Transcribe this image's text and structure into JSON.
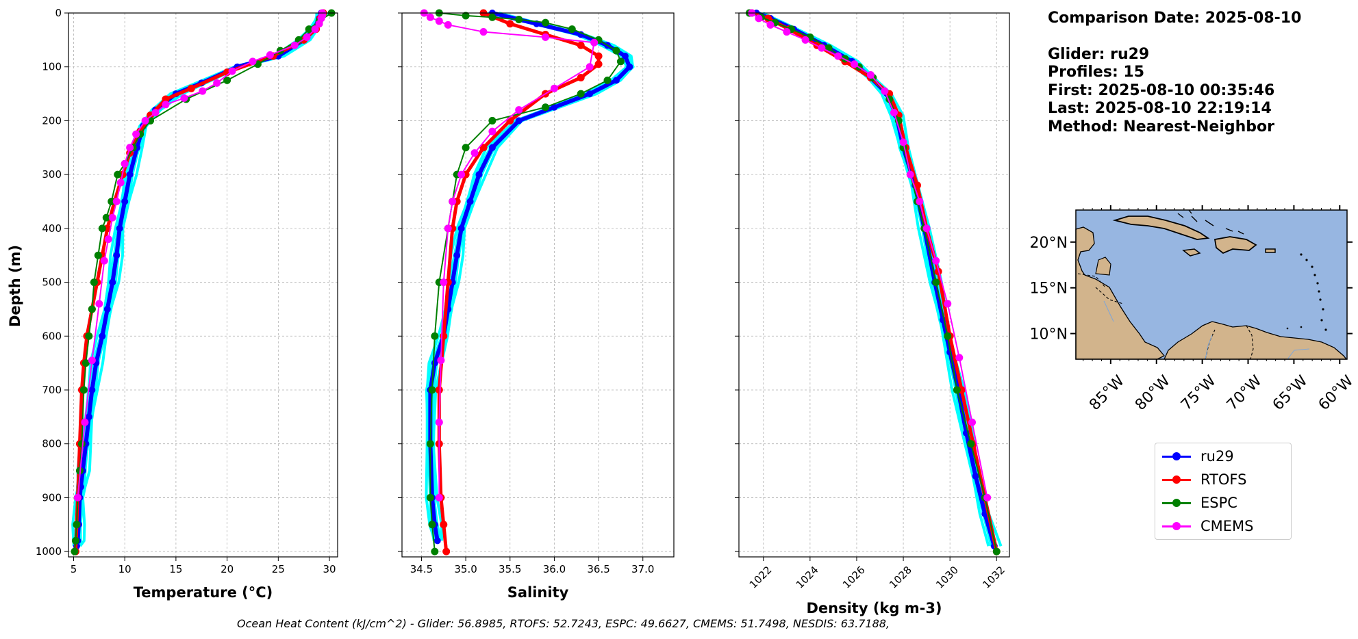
{
  "info": {
    "comparison_date": "Comparison Date: 2025-08-10",
    "glider": "Glider: ru29",
    "profiles": "Profiles: 15",
    "first": "First: 2025-08-10 00:35:46",
    "last": "Last: 2025-08-10 22:19:14",
    "method": "Method: Nearest-Neighbor"
  },
  "footer": "Ocean Heat Content (kJ/cm^2) - Glider: 56.8985,  RTOFS: 52.7243,  ESPC: 49.6627,  CMEMS: 51.7498,  NESDIS: 63.7188,",
  "legend": [
    {
      "name": "ru29",
      "color": "#0000ff"
    },
    {
      "name": "RTOFS",
      "color": "#ff0000"
    },
    {
      "name": "ESPC",
      "color": "#008000"
    },
    {
      "name": "CMEMS",
      "color": "#ff00ff"
    }
  ],
  "colors": {
    "glider_profiles": "#00ffff",
    "ocean": "#97b6e1",
    "land": "#d2b48c"
  },
  "chart_data": [
    {
      "type": "line",
      "xlabel": "Temperature (°C)",
      "ylabel": "Depth (m)",
      "xlim": [
        4.5,
        30.8
      ],
      "ylim": [
        1010,
        0
      ],
      "xticks": [
        5,
        10,
        15,
        20,
        25,
        30
      ],
      "yticks": [
        0,
        100,
        200,
        300,
        400,
        500,
        600,
        700,
        800,
        900,
        1000
      ],
      "grid": true,
      "series": [
        {
          "name": "ru29",
          "color": "#0000ff",
          "x": [
            29.2,
            29.0,
            28.5,
            27.5,
            25.0,
            21.0,
            17.5,
            15.0,
            13.0,
            11.8,
            11.2,
            10.5,
            10.0,
            9.5,
            9.2,
            8.8,
            8.3,
            7.8,
            7.2,
            6.8,
            6.5,
            6.2,
            5.9,
            5.7,
            5.6,
            5.5,
            5.4,
            5.3
          ],
          "y": [
            0,
            10,
            30,
            50,
            80,
            100,
            130,
            150,
            180,
            210,
            250,
            300,
            350,
            400,
            450,
            500,
            550,
            600,
            650,
            700,
            750,
            800,
            850,
            880,
            900,
            950,
            980,
            990
          ]
        },
        {
          "name": "RTOFS",
          "color": "#ff0000",
          "x": [
            29.4,
            29.1,
            28.7,
            27.5,
            24.5,
            20.0,
            16.5,
            14.0,
            12.5,
            11.5,
            10.5,
            9.8,
            9.0,
            8.3,
            7.8,
            7.3,
            6.8,
            6.3,
            6.0,
            5.8,
            5.6,
            5.4,
            5.3,
            5.2
          ],
          "y": [
            0,
            10,
            30,
            50,
            80,
            110,
            140,
            160,
            190,
            220,
            260,
            300,
            350,
            400,
            450,
            500,
            550,
            600,
            650,
            700,
            800,
            900,
            950,
            1000
          ]
        },
        {
          "name": "ESPC",
          "color": "#008000",
          "x": [
            30.2,
            29.0,
            28.0,
            27.0,
            25.2,
            23.0,
            20.0,
            16.0,
            12.5,
            11.5,
            10.8,
            10.0,
            9.3,
            8.7,
            8.2,
            7.8,
            7.4,
            7.0,
            6.8,
            6.5,
            6.2,
            6.0,
            5.8,
            5.6,
            5.4,
            5.3,
            5.2,
            5.1
          ],
          "y": [
            0,
            15,
            30,
            50,
            70,
            95,
            125,
            160,
            200,
            225,
            250,
            280,
            300,
            350,
            380,
            400,
            450,
            500,
            550,
            600,
            650,
            700,
            800,
            850,
            900,
            950,
            980,
            1000
          ]
        },
        {
          "name": "CMEMS",
          "color": "#ff00ff",
          "x": [
            29.3,
            29.3,
            29.2,
            29.0,
            28.6,
            27.8,
            26.6,
            24.2,
            22.5,
            20.5,
            19.0,
            17.6,
            15.8,
            14.0,
            13.0,
            12.0,
            11.1,
            10.5,
            10.0,
            9.6,
            9.2,
            8.8,
            8.4,
            8.0,
            7.5,
            6.8,
            6.1,
            5.4
          ],
          "y": [
            0,
            5,
            10,
            20,
            30,
            45,
            60,
            78,
            90,
            108,
            130,
            145,
            158,
            170,
            185,
            200,
            225,
            250,
            280,
            315,
            350,
            380,
            420,
            460,
            540,
            645,
            760,
            900
          ]
        }
      ]
    },
    {
      "type": "line",
      "xlabel": "Salinity",
      "xlim": [
        34.28,
        37.35
      ],
      "ylim": [
        1010,
        0
      ],
      "xticks": [
        34.5,
        35.0,
        35.5,
        36.0,
        36.5,
        37.0
      ],
      "yticks": [
        0,
        100,
        200,
        300,
        400,
        500,
        600,
        700,
        800,
        900,
        1000
      ],
      "grid": true,
      "series": [
        {
          "name": "ru29",
          "color": "#0000ff",
          "x": [
            35.3,
            35.8,
            36.3,
            36.6,
            36.8,
            36.85,
            36.7,
            36.4,
            36.0,
            35.6,
            35.3,
            35.15,
            35.05,
            34.95,
            34.9,
            34.85,
            34.8,
            34.75,
            34.65,
            34.6,
            34.6,
            34.62,
            34.65,
            34.68
          ],
          "y": [
            0,
            20,
            40,
            60,
            80,
            100,
            125,
            150,
            175,
            200,
            250,
            300,
            350,
            400,
            450,
            500,
            550,
            600,
            650,
            700,
            800,
            900,
            950,
            980
          ]
        },
        {
          "name": "RTOFS",
          "color": "#ff0000",
          "x": [
            35.2,
            35.5,
            35.9,
            36.3,
            36.5,
            36.5,
            36.3,
            35.9,
            35.5,
            35.2,
            35.0,
            34.9,
            34.85,
            34.8,
            34.75,
            34.7,
            34.7,
            34.72,
            34.75,
            34.78
          ],
          "y": [
            0,
            20,
            40,
            60,
            80,
            95,
            120,
            150,
            200,
            250,
            300,
            350,
            400,
            500,
            600,
            700,
            800,
            900,
            950,
            1000
          ]
        },
        {
          "name": "ESPC",
          "color": "#008000",
          "x": [
            34.7,
            35.0,
            35.3,
            35.6,
            35.9,
            36.2,
            36.5,
            36.7,
            36.75,
            36.6,
            36.3,
            35.9,
            35.3,
            35.0,
            34.9,
            34.85,
            34.8,
            34.7,
            34.65,
            34.62,
            34.6,
            34.6,
            34.62,
            34.65
          ],
          "y": [
            0,
            5,
            8,
            12,
            18,
            30,
            50,
            70,
            90,
            125,
            150,
            175,
            200,
            250,
            300,
            350,
            400,
            500,
            600,
            700,
            800,
            900,
            950,
            1000
          ]
        },
        {
          "name": "CMEMS",
          "color": "#ff00ff",
          "x": [
            34.53,
            34.6,
            34.7,
            34.8,
            35.2,
            35.9,
            36.45,
            36.4,
            36.0,
            35.6,
            35.3,
            35.1,
            34.95,
            34.85,
            34.8,
            34.75,
            34.72,
            34.7,
            34.7
          ],
          "y": [
            0,
            8,
            15,
            22,
            35,
            45,
            55,
            100,
            140,
            180,
            220,
            260,
            300,
            350,
            400,
            500,
            645,
            760,
            900
          ]
        }
      ]
    },
    {
      "type": "line",
      "xlabel": "Density (kg m-3)",
      "xlim": [
        1020.95,
        1032.55
      ],
      "ylim": [
        1010,
        0
      ],
      "xticks": [
        1022,
        1024,
        1026,
        1028,
        1030,
        1032
      ],
      "yticks": [
        0,
        100,
        200,
        300,
        400,
        500,
        600,
        700,
        800,
        900,
        1000
      ],
      "grid": true,
      "series": [
        {
          "name": "ru29",
          "color": "#0000ff",
          "x": [
            1021.7,
            1022.3,
            1023.3,
            1024.6,
            1025.8,
            1026.6,
            1027.3,
            1027.7,
            1028.0,
            1028.5,
            1028.9,
            1029.35,
            1029.7,
            1030.0,
            1030.35,
            1030.7,
            1031.1,
            1031.5,
            1031.9
          ],
          "y": [
            0,
            10,
            30,
            60,
            90,
            120,
            150,
            190,
            250,
            320,
            400,
            500,
            570,
            630,
            700,
            780,
            860,
            930,
            990
          ]
        },
        {
          "name": "RTOFS",
          "color": "#ff0000",
          "x": [
            1021.5,
            1022.2,
            1023.1,
            1024.3,
            1025.5,
            1026.6,
            1027.4,
            1027.8,
            1028.1,
            1028.6,
            1029.0,
            1029.5,
            1030.0,
            1030.5,
            1031.0,
            1031.5,
            1032.0
          ],
          "y": [
            0,
            10,
            30,
            60,
            90,
            120,
            150,
            190,
            250,
            320,
            400,
            480,
            600,
            700,
            800,
            900,
            1000
          ]
        },
        {
          "name": "ESPC",
          "color": "#008000",
          "x": [
            1021.4,
            1021.9,
            1022.5,
            1023.2,
            1024.0,
            1024.8,
            1025.5,
            1026.1,
            1026.7,
            1027.4,
            1027.8,
            1028.0,
            1028.3,
            1028.6,
            1028.9,
            1029.4,
            1029.9,
            1030.3,
            1030.9,
            1031.5,
            1032.0
          ],
          "y": [
            0,
            8,
            18,
            30,
            45,
            65,
            85,
            100,
            120,
            160,
            200,
            250,
            300,
            350,
            400,
            500,
            600,
            700,
            800,
            900,
            1000
          ]
        },
        {
          "name": "CMEMS",
          "color": "#ff00ff",
          "x": [
            1021.5,
            1021.8,
            1022.3,
            1023.0,
            1023.8,
            1024.5,
            1025.2,
            1025.9,
            1026.6,
            1027.2,
            1027.6,
            1028.0,
            1028.3,
            1028.7,
            1029.0,
            1029.4,
            1029.9,
            1030.4,
            1030.95,
            1031.6
          ],
          "y": [
            0,
            10,
            22,
            35,
            50,
            65,
            80,
            95,
            115,
            145,
            185,
            240,
            300,
            350,
            400,
            460,
            540,
            640,
            760,
            900
          ]
        }
      ]
    }
  ],
  "map": {
    "lat_ticks": [
      "20°N",
      "15°N",
      "10°N"
    ],
    "lon_ticks": [
      "85°W",
      "80°W",
      "75°W",
      "70°W",
      "65°W",
      "60°W"
    ],
    "lat_range": [
      7.2,
      23.5
    ],
    "lon_range": [
      -88.8,
      -59.2
    ]
  }
}
